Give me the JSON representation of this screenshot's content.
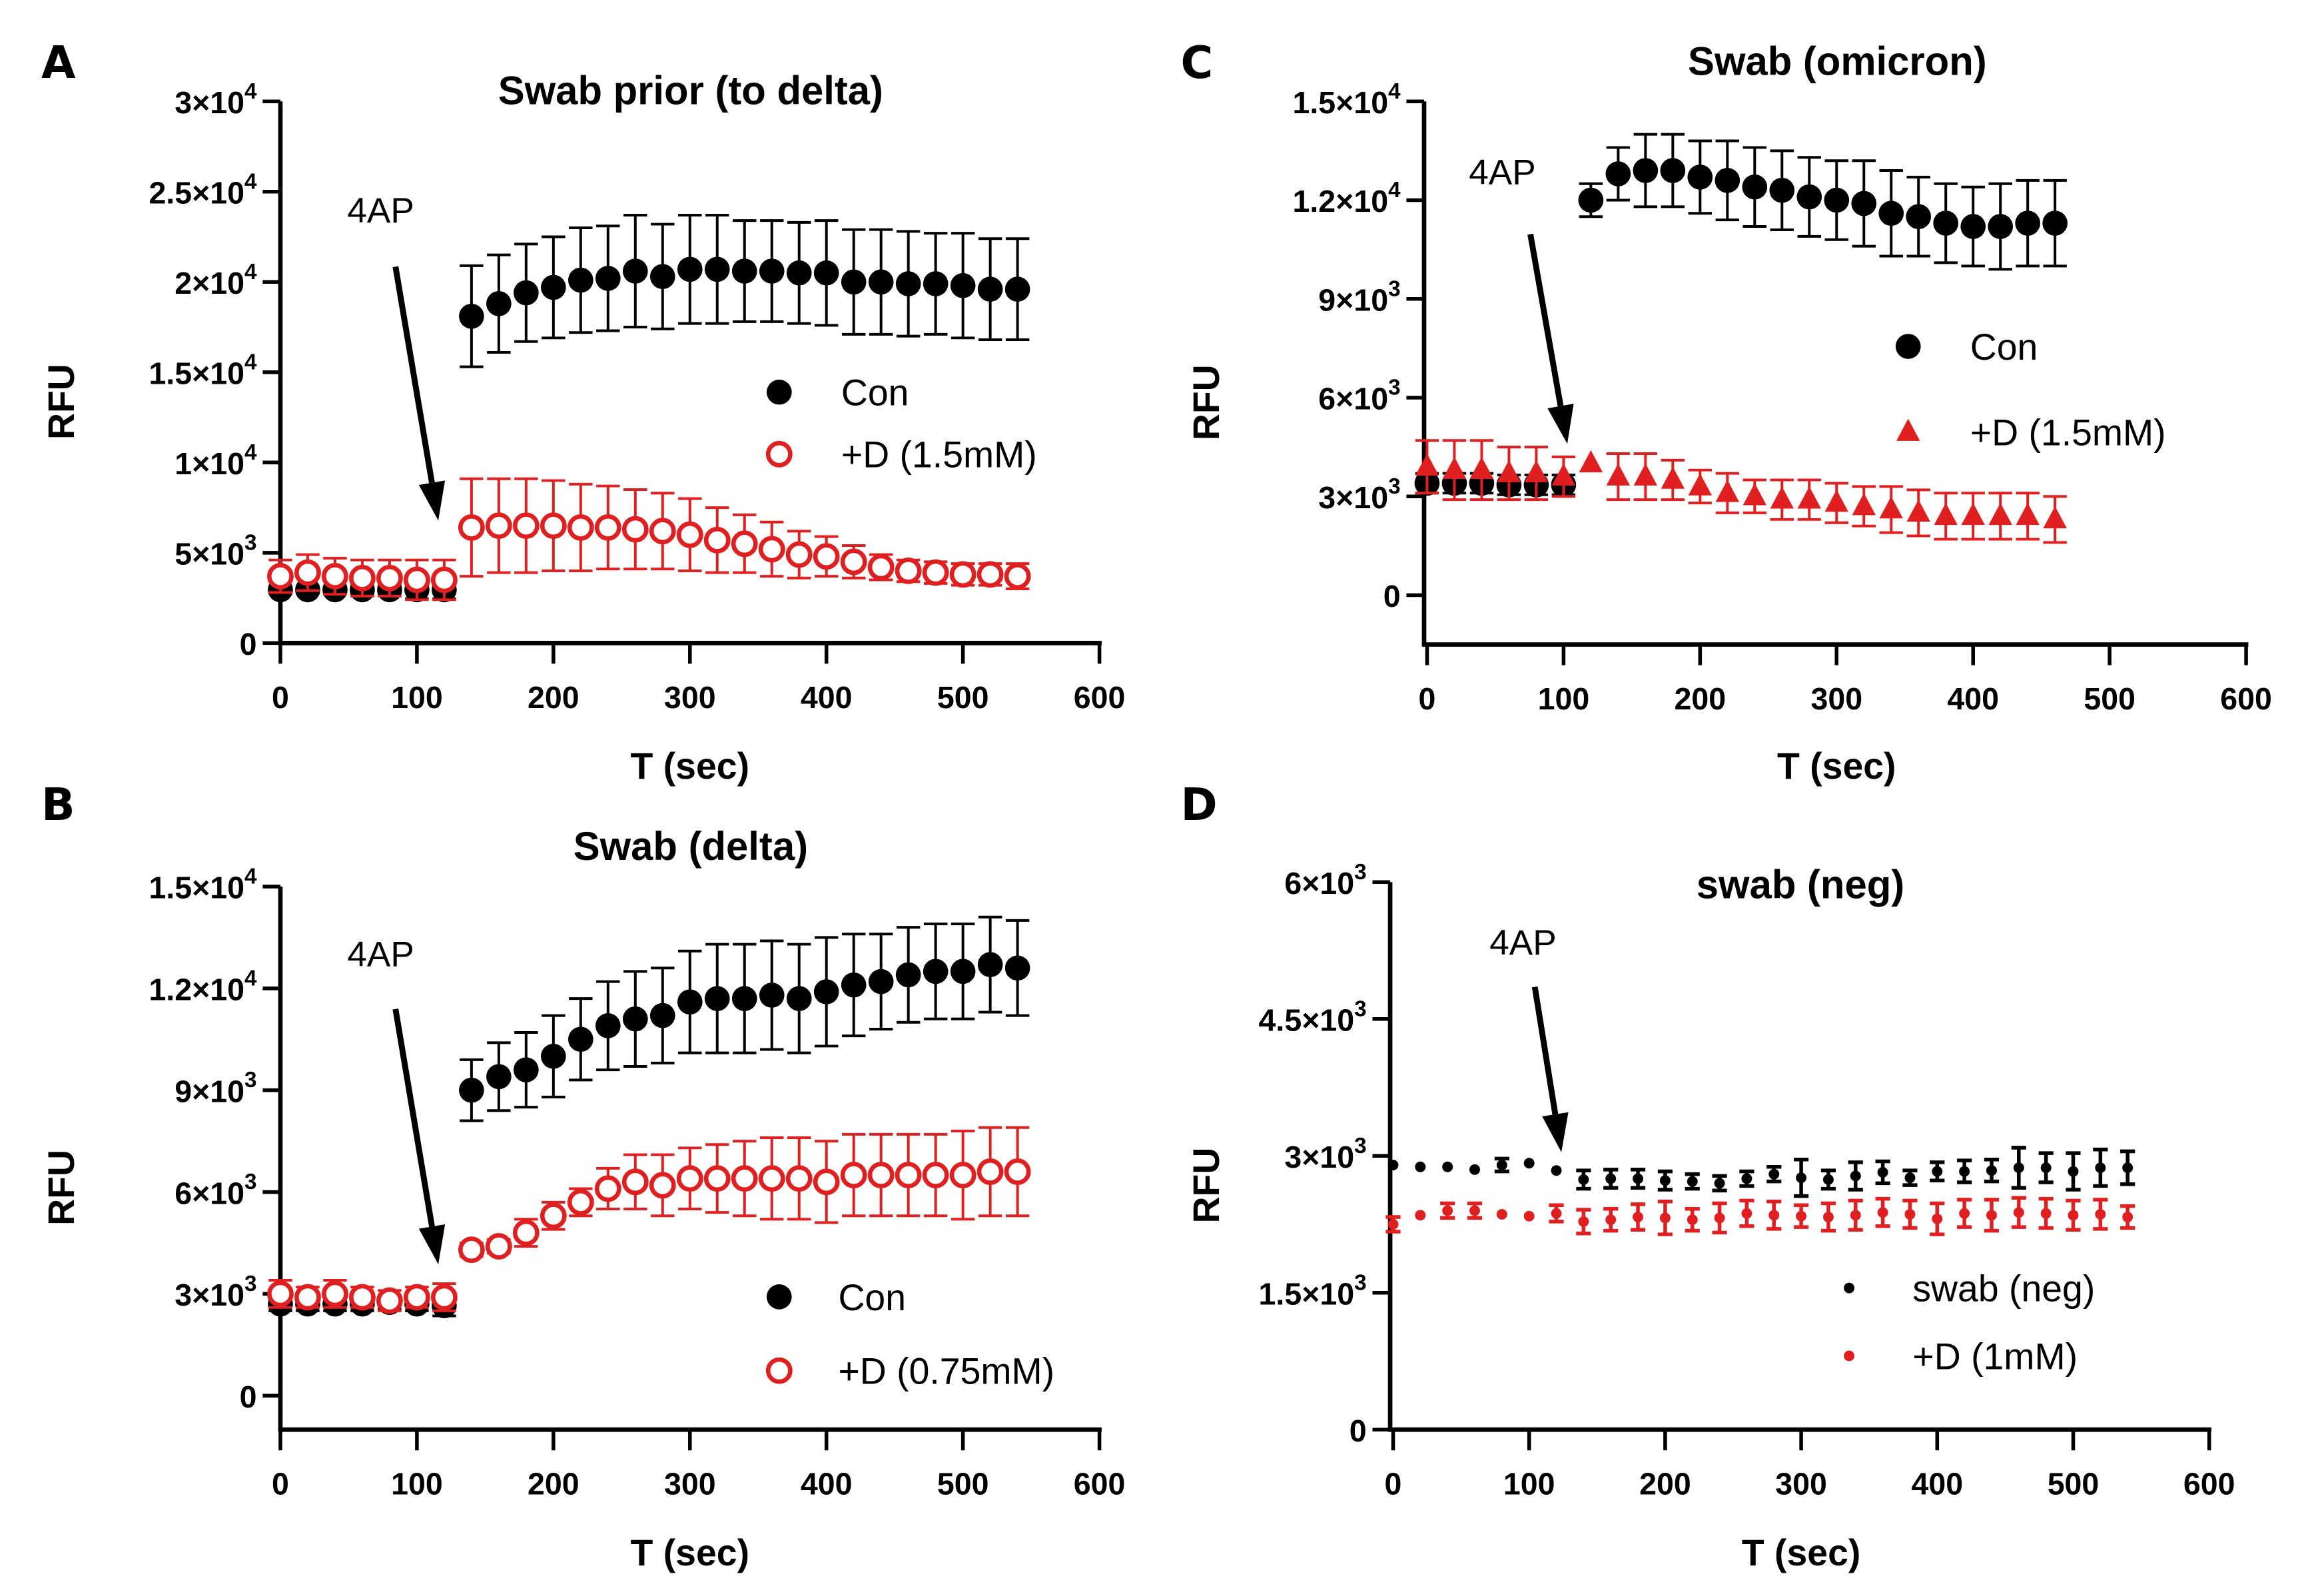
{
  "figure": {
    "colors": {
      "con": "#000000",
      "drug": "#e02020",
      "axis": "#000000"
    },
    "arrow_label": "4AP"
  },
  "chart_data": [
    {
      "panel": "A",
      "type": "scatter",
      "title": "Swab prior (to delta)",
      "xlabel": "T (sec)",
      "ylabel": "RFU",
      "xlim": [
        0,
        600
      ],
      "ylim": [
        0,
        30000
      ],
      "xticks": [
        0,
        100,
        200,
        300,
        400,
        500,
        600
      ],
      "xtick_labels": [
        "0",
        "100",
        "200",
        "300",
        "400",
        "500",
        "600"
      ],
      "yticks": [
        0,
        5000,
        10000,
        15000,
        20000,
        25000,
        30000
      ],
      "ytick_labels": [
        {
          "base": "0",
          "exp": ""
        },
        {
          "base": "5×10",
          "exp": "3"
        },
        {
          "base": "1×10",
          "exp": "4"
        },
        {
          "base": "1.5×10",
          "exp": "4"
        },
        {
          "base": "2×10",
          "exp": "4"
        },
        {
          "base": "2.5×10",
          "exp": "4"
        },
        {
          "base": "3×10",
          "exp": "4"
        }
      ],
      "annotation": {
        "text": "4AP",
        "x": 120
      },
      "legend_position": "center-right",
      "series": [
        {
          "name": "Con",
          "marker": "filled-circle",
          "color": "#000000",
          "x": [
            0,
            20,
            40,
            60,
            80,
            100,
            120,
            140,
            160,
            180,
            200,
            220,
            240,
            260,
            280,
            300,
            320,
            340,
            360,
            380,
            400,
            420,
            440,
            460,
            480,
            500,
            520,
            540
          ],
          "y": [
            2950,
            2950,
            2950,
            2950,
            2950,
            2950,
            2950,
            18100,
            18800,
            19400,
            19700,
            20100,
            20200,
            20600,
            20300,
            20700,
            20700,
            20600,
            20600,
            20500,
            20500,
            20000,
            20000,
            19900,
            19900,
            19800,
            19600,
            19600
          ],
          "err": [
            200,
            200,
            200,
            300,
            300,
            500,
            500,
            2800,
            2700,
            2700,
            2800,
            2900,
            2900,
            3100,
            2900,
            3000,
            3000,
            2800,
            2800,
            2800,
            2900,
            2900,
            2900,
            2900,
            2800,
            2900,
            2800,
            2800
          ]
        },
        {
          "name": "+D (1.5mM)",
          "marker": "open-circle",
          "color": "#e02020",
          "x": [
            0,
            20,
            40,
            60,
            80,
            100,
            120,
            140,
            160,
            180,
            200,
            220,
            240,
            260,
            280,
            300,
            320,
            340,
            360,
            380,
            400,
            420,
            440,
            460,
            480,
            500,
            520,
            540
          ],
          "y": [
            3700,
            3900,
            3700,
            3600,
            3600,
            3500,
            3500,
            6400,
            6500,
            6500,
            6500,
            6400,
            6400,
            6300,
            6200,
            6000,
            5700,
            5500,
            5200,
            4900,
            4800,
            4500,
            4200,
            4000,
            3900,
            3800,
            3800,
            3700
          ],
          "err": [
            900,
            1000,
            1000,
            1000,
            1000,
            1100,
            1100,
            2700,
            2600,
            2600,
            2500,
            2400,
            2300,
            2200,
            2100,
            2000,
            1800,
            1600,
            1500,
            1300,
            1100,
            900,
            700,
            600,
            600,
            600,
            600,
            700
          ]
        }
      ]
    },
    {
      "panel": "B",
      "type": "scatter",
      "title": "Swab (delta)",
      "xlabel": "T (sec)",
      "ylabel": "RFU",
      "xlim": [
        0,
        600
      ],
      "ylim": [
        -1000,
        15000
      ],
      "xticks": [
        0,
        100,
        200,
        300,
        400,
        500,
        600
      ],
      "xtick_labels": [
        "0",
        "100",
        "200",
        "300",
        "400",
        "500",
        "600"
      ],
      "yticks": [
        0,
        3000,
        6000,
        9000,
        12000,
        15000
      ],
      "ytick_labels": [
        {
          "base": "0",
          "exp": ""
        },
        {
          "base": "3×10",
          "exp": "3"
        },
        {
          "base": "6×10",
          "exp": "3"
        },
        {
          "base": "9×10",
          "exp": "3"
        },
        {
          "base": "1.2×10",
          "exp": "4"
        },
        {
          "base": "1.5×10",
          "exp": "4"
        }
      ],
      "annotation": {
        "text": "4AP",
        "x": 120
      },
      "legend_position": "bottom-right",
      "series": [
        {
          "name": "Con",
          "marker": "filled-circle",
          "color": "#000000",
          "x": [
            0,
            20,
            40,
            60,
            80,
            100,
            120,
            140,
            160,
            180,
            200,
            220,
            240,
            260,
            280,
            300,
            320,
            340,
            360,
            380,
            400,
            420,
            440,
            460,
            480,
            500,
            520,
            540
          ],
          "y": [
            2700,
            2700,
            2700,
            2700,
            2750,
            2700,
            2650,
            9000,
            9400,
            9600,
            10000,
            10500,
            10900,
            11100,
            11200,
            11600,
            11700,
            11700,
            11800,
            11700,
            11900,
            12100,
            12200,
            12400,
            12500,
            12500,
            12700,
            12600
          ],
          "err": [
            200,
            200,
            200,
            200,
            200,
            200,
            300,
            900,
            1000,
            1100,
            1200,
            1200,
            1300,
            1400,
            1400,
            1500,
            1600,
            1600,
            1600,
            1600,
            1600,
            1500,
            1400,
            1400,
            1400,
            1400,
            1400,
            1400
          ]
        },
        {
          "name": "+D (0.75mM)",
          "marker": "open-circle",
          "color": "#e02020",
          "x": [
            0,
            20,
            40,
            60,
            80,
            100,
            120,
            140,
            160,
            180,
            200,
            220,
            240,
            260,
            280,
            300,
            320,
            340,
            360,
            380,
            400,
            420,
            440,
            460,
            480,
            500,
            520,
            540
          ],
          "y": [
            3000,
            2900,
            3000,
            2900,
            2800,
            2900,
            2900,
            4300,
            4400,
            4800,
            5300,
            5700,
            6100,
            6300,
            6200,
            6400,
            6400,
            6400,
            6400,
            6400,
            6300,
            6500,
            6500,
            6500,
            6500,
            6500,
            6600,
            6600
          ],
          "err": [
            400,
            300,
            400,
            300,
            300,
            300,
            400,
            200,
            200,
            400,
            400,
            400,
            600,
            800,
            900,
            900,
            1000,
            1100,
            1200,
            1200,
            1200,
            1200,
            1200,
            1200,
            1200,
            1300,
            1300,
            1300
          ]
        }
      ]
    },
    {
      "panel": "C",
      "type": "scatter",
      "title": "Swab (omicron)",
      "xlabel": "T (sec)",
      "ylabel": "RFU",
      "xlim": [
        0,
        600
      ],
      "ylim": [
        -1500,
        15000
      ],
      "xticks": [
        0,
        100,
        200,
        300,
        400,
        500,
        600
      ],
      "xtick_labels": [
        "0",
        "100",
        "200",
        "300",
        "400",
        "500",
        "600"
      ],
      "yticks": [
        0,
        3000,
        6000,
        9000,
        12000,
        15000
      ],
      "ytick_labels": [
        {
          "base": "0",
          "exp": ""
        },
        {
          "base": "3×10",
          "exp": "3"
        },
        {
          "base": "6×10",
          "exp": "3"
        },
        {
          "base": "9×10",
          "exp": "3"
        },
        {
          "base": "1.2×10",
          "exp": "4"
        },
        {
          "base": "1.5×10",
          "exp": "4"
        }
      ],
      "annotation": {
        "text": "4AP",
        "x": 100
      },
      "legend_position": "center-right",
      "series": [
        {
          "name": "Con",
          "marker": "filled-circle",
          "color": "#000000",
          "x": [
            0,
            20,
            40,
            60,
            80,
            100,
            120,
            140,
            160,
            180,
            200,
            220,
            240,
            260,
            280,
            300,
            320,
            340,
            360,
            380,
            400,
            420,
            440,
            460
          ],
          "y": [
            3400,
            3400,
            3400,
            3350,
            3350,
            3350,
            12000,
            12800,
            12900,
            12900,
            12700,
            12600,
            12400,
            12300,
            12100,
            12000,
            11900,
            11600,
            11500,
            11300,
            11200,
            11200,
            11300,
            11300
          ],
          "err": [
            300,
            300,
            300,
            300,
            300,
            300,
            500,
            800,
            1100,
            1100,
            1100,
            1200,
            1200,
            1200,
            1200,
            1200,
            1300,
            1300,
            1200,
            1200,
            1200,
            1300,
            1300,
            1300
          ]
        },
        {
          "name": "+D (1.5mM)",
          "marker": "filled-triangle",
          "color": "#e02020",
          "x": [
            0,
            20,
            40,
            60,
            80,
            100,
            120,
            140,
            160,
            180,
            200,
            220,
            240,
            260,
            280,
            300,
            320,
            340,
            360,
            380,
            400,
            420,
            440,
            460
          ],
          "y": [
            3900,
            3800,
            3800,
            3700,
            3700,
            3600,
            4000,
            3600,
            3600,
            3500,
            3300,
            3100,
            3000,
            2900,
            2900,
            2800,
            2700,
            2600,
            2500,
            2400,
            2400,
            2400,
            2400,
            2300
          ],
          "err": [
            800,
            900,
            900,
            800,
            800,
            600,
            0,
            700,
            700,
            600,
            500,
            600,
            500,
            600,
            600,
            600,
            600,
            700,
            700,
            700,
            700,
            700,
            700,
            700
          ]
        }
      ]
    },
    {
      "panel": "D",
      "type": "scatter",
      "title": "swab (neg)",
      "xlabel": "T (sec)",
      "ylabel": "RFU",
      "xlim": [
        0,
        600
      ],
      "ylim": [
        0,
        6000
      ],
      "xticks": [
        0,
        100,
        200,
        300,
        400,
        500,
        600
      ],
      "xtick_labels": [
        "0",
        "100",
        "200",
        "300",
        "400",
        "500",
        "600"
      ],
      "yticks": [
        0,
        1500,
        3000,
        4500,
        6000
      ],
      "ytick_labels": [
        {
          "base": "0",
          "exp": ""
        },
        {
          "base": "1.5×10",
          "exp": "3"
        },
        {
          "base": "3×10",
          "exp": "3"
        },
        {
          "base": "4.5×10",
          "exp": "3"
        },
        {
          "base": "6×10",
          "exp": "3"
        }
      ],
      "annotation": {
        "text": "4AP",
        "x": 120
      },
      "legend_position": "bottom-right",
      "series": [
        {
          "name": "swab (neg)",
          "marker": "small-dot",
          "color": "#000000",
          "x": [
            0,
            20,
            40,
            60,
            80,
            100,
            120,
            140,
            160,
            180,
            200,
            220,
            240,
            260,
            280,
            300,
            320,
            340,
            360,
            380,
            400,
            420,
            440,
            460,
            480,
            500,
            520,
            540
          ],
          "y": [
            2900,
            2880,
            2880,
            2850,
            2900,
            2920,
            2840,
            2740,
            2750,
            2750,
            2730,
            2720,
            2700,
            2750,
            2800,
            2760,
            2740,
            2780,
            2820,
            2760,
            2830,
            2830,
            2840,
            2870,
            2870,
            2830,
            2870,
            2870
          ],
          "err": [
            0,
            0,
            0,
            0,
            70,
            0,
            0,
            100,
            100,
            100,
            100,
            80,
            80,
            80,
            80,
            200,
            100,
            150,
            120,
            80,
            100,
            120,
            120,
            220,
            160,
            200,
            200,
            180
          ]
        },
        {
          "name": "+D (1mM)",
          "marker": "small-dot",
          "color": "#e02020",
          "x": [
            0,
            20,
            40,
            60,
            80,
            100,
            120,
            140,
            160,
            180,
            200,
            220,
            240,
            260,
            280,
            300,
            320,
            340,
            360,
            380,
            400,
            420,
            440,
            460,
            480,
            500,
            520,
            540
          ],
          "y": [
            2250,
            2350,
            2400,
            2400,
            2360,
            2340,
            2370,
            2280,
            2300,
            2330,
            2320,
            2300,
            2320,
            2370,
            2350,
            2340,
            2330,
            2350,
            2380,
            2360,
            2310,
            2370,
            2350,
            2380,
            2370,
            2350,
            2360,
            2330
          ],
          "err": [
            80,
            0,
            80,
            80,
            0,
            0,
            90,
            130,
            120,
            140,
            180,
            120,
            160,
            140,
            150,
            120,
            150,
            160,
            150,
            150,
            170,
            150,
            170,
            160,
            160,
            160,
            160,
            120
          ]
        }
      ]
    }
  ]
}
